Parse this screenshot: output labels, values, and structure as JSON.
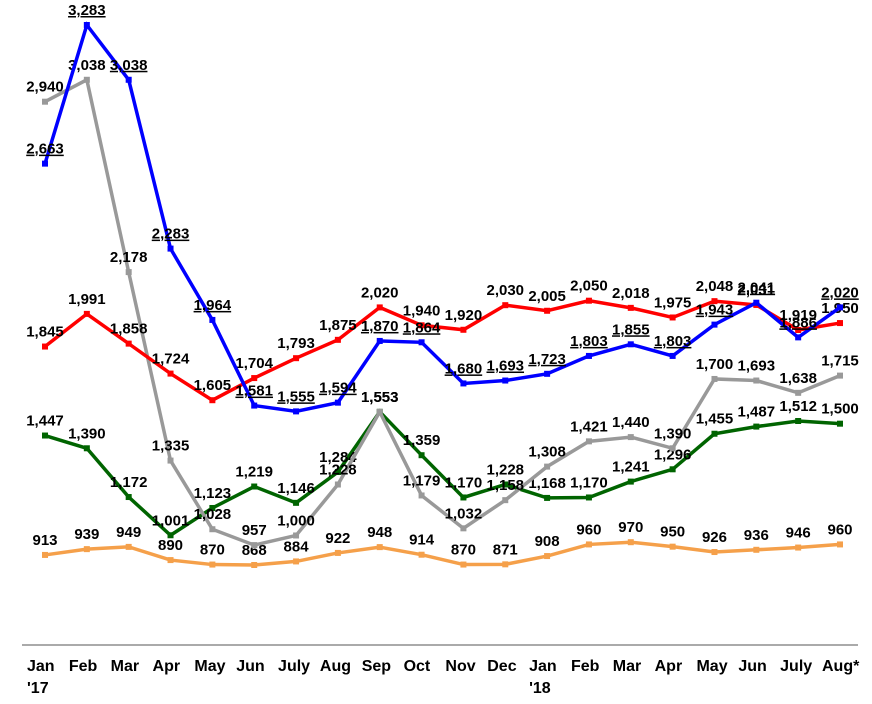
{
  "chart_data": {
    "type": "line",
    "categories": [
      "Jan '17",
      "Feb",
      "Mar",
      "Apr",
      "May",
      "Jun",
      "July",
      "Aug",
      "Sep",
      "Oct",
      "Nov",
      "Dec",
      "Jan '18",
      "Feb",
      "Mar",
      "Apr",
      "May",
      "Jun",
      "July",
      "Aug*"
    ],
    "series": [
      {
        "color": "#f5a04a",
        "values": [
          913,
          939,
          949,
          890,
          870,
          868,
          884,
          922,
          948,
          914,
          870,
          871,
          908,
          960,
          970,
          950,
          926,
          936,
          946,
          960
        ],
        "value_labels": [
          "913",
          "939",
          "949",
          "890",
          "870",
          "868",
          "884",
          "922",
          "948",
          "914",
          "870",
          "871",
          "908",
          "960",
          "970",
          "950",
          "926",
          "936",
          "946",
          "960"
        ]
      },
      {
        "color": "#006400",
        "values": [
          1447,
          1390,
          1172,
          1001,
          1123,
          1219,
          1146,
          1284,
          1553,
          1359,
          1170,
          1228,
          1168,
          1170,
          1241,
          1296,
          1455,
          1487,
          1512,
          1500
        ],
        "value_labels": [
          "1,447",
          "1,390",
          "1,172",
          "1,001",
          "1,123",
          "1,219",
          "1,146",
          "1,284",
          "1,553",
          "1,359",
          "1,170",
          "1,228",
          "1,168",
          "1,170",
          "1,241",
          "1,296",
          "1,455",
          "1,487",
          "1,512",
          "1,500"
        ]
      },
      {
        "color": "#999999",
        "values": [
          2940,
          3038,
          2178,
          1335,
          1028,
          957,
          1000,
          1228,
          1553,
          1179,
          1032,
          1158,
          1308,
          1421,
          1440,
          1390,
          1700,
          1693,
          1638,
          1715
        ],
        "value_labels": [
          "2,940",
          "3,038",
          "2,178",
          "1,335",
          "1,028",
          "957",
          "1,000",
          "1,228",
          "1,553",
          "1,179",
          "1,032",
          "1,158",
          "1,308",
          "1,421",
          "1,440",
          "1,390",
          "1,700",
          "1,693",
          "1,638",
          "1,715"
        ]
      },
      {
        "color": "#ff0000",
        "values": [
          1845,
          1991,
          1858,
          1724,
          1605,
          1704,
          1793,
          1875,
          2020,
          1940,
          1920,
          2030,
          2005,
          2050,
          2018,
          1975,
          2048,
          2031,
          1919,
          1950
        ],
        "value_labels": [
          "1,845",
          "1,991",
          "1,858",
          "1,724",
          "1,605",
          "1,704",
          "1,793",
          "1,875",
          "2,020",
          "1,940",
          "1,920",
          "2,030",
          "2,005",
          "2,050",
          "2,018",
          "1,975",
          "2,048",
          "2,031",
          "1,919",
          "1,950"
        ]
      },
      {
        "color": "#0000ff",
        "underline": true,
        "values": [
          2663,
          3283,
          3038,
          2283,
          1964,
          1581,
          1555,
          1594,
          1870,
          1864,
          1680,
          1693,
          1723,
          1803,
          1855,
          1803,
          1943,
          2041,
          1886,
          2020
        ],
        "value_labels": [
          "2,663",
          "3,283",
          "3,038",
          "2,283",
          "1,964",
          "1,581",
          "1,555",
          "1,594",
          "1,870",
          "1,864",
          "1,680",
          "1,693",
          "1,723",
          "1,803",
          "1,855",
          "1,803",
          "1,943",
          "2,041",
          "1,886",
          "2,020"
        ]
      }
    ]
  }
}
